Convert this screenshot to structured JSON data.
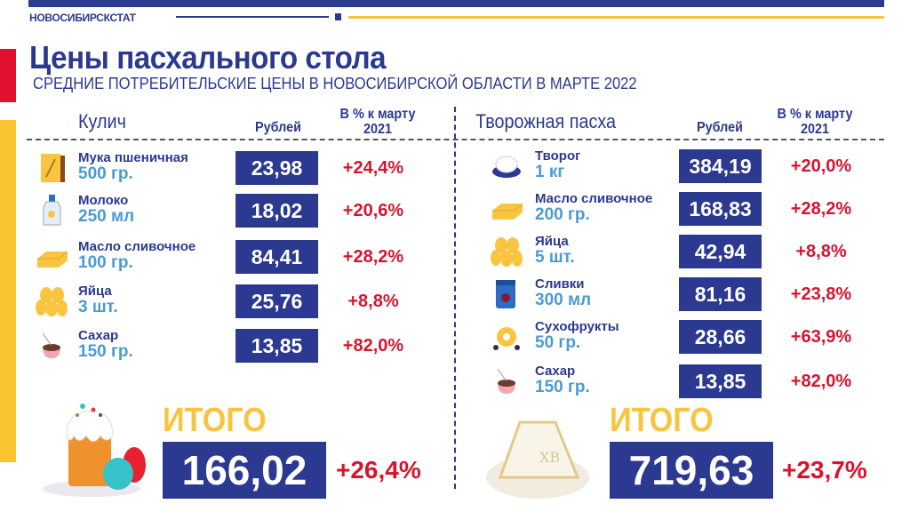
{
  "header": {
    "org": "НОВОСИБИРСКСТАТ",
    "title": "Цены пасхального стола",
    "subtitle": "СРЕДНИЕ ПОТРЕБИТЕЛЬСКИЕ ЦЕНЫ В НОВОСИБИРСКОЙ ОБЛАСТИ В МАРТЕ 2022"
  },
  "colors": {
    "navy": "#2b3990",
    "red": "#d7142e",
    "yellow": "#f9c540",
    "light_blue": "#4a9bd4"
  },
  "kulich": {
    "title": "Кулич",
    "col_rub": "Рублей",
    "col_pct": "В % к марту 2021",
    "items": [
      {
        "name": "Мука пшеничная",
        "qty": "500 гр.",
        "price": "23,98",
        "pct": "+24,4%",
        "icon": "flour-bag-icon"
      },
      {
        "name": "Молоко",
        "qty": "250 мл",
        "price": "18,02",
        "pct": "+20,6%",
        "icon": "milk-bottle-icon"
      },
      {
        "name": "Масло сливочное",
        "qty": "100 гр.",
        "price": "84,41",
        "pct": "+28,2%",
        "icon": "butter-icon"
      },
      {
        "name": "Яйца",
        "qty": "3 шт.",
        "price": "25,76",
        "pct": "+8,8%",
        "icon": "eggs-icon"
      },
      {
        "name": "Сахар",
        "qty": "150 гр.",
        "price": "13,85",
        "pct": "+82,0%",
        "icon": "sugar-cup-icon"
      }
    ],
    "total_label": "ИТОГО",
    "total": "166,02",
    "total_pct": "+26,4%"
  },
  "paskha": {
    "title": "Творожная пасха",
    "col_rub": "Рублей",
    "col_pct": "В % к марту 2021",
    "items": [
      {
        "name": "Творог",
        "qty": "1 кг",
        "price": "384,19",
        "pct": "+20,0%",
        "icon": "cottage-cheese-icon"
      },
      {
        "name": "Масло сливочное",
        "qty": "200 гр.",
        "price": "168,83",
        "pct": "+28,2%",
        "icon": "butter-icon"
      },
      {
        "name": "Яйца",
        "qty": "5 шт.",
        "price": "42,94",
        "pct": "+8,8%",
        "icon": "eggs-icon"
      },
      {
        "name": "Сливки",
        "qty": "300 мл",
        "price": "81,16",
        "pct": "+23,8%",
        "icon": "cream-carton-icon"
      },
      {
        "name": "Сухофрукты",
        "qty": "50 гр.",
        "price": "28,66",
        "pct": "+63,9%",
        "icon": "dried-fruit-icon"
      },
      {
        "name": "Сахар",
        "qty": "150 гр.",
        "price": "13,85",
        "pct": "+82,0%",
        "icon": "sugar-cup-icon"
      }
    ],
    "total_label": "ИТОГО",
    "total": "719,63",
    "total_pct": "+23,7%"
  }
}
